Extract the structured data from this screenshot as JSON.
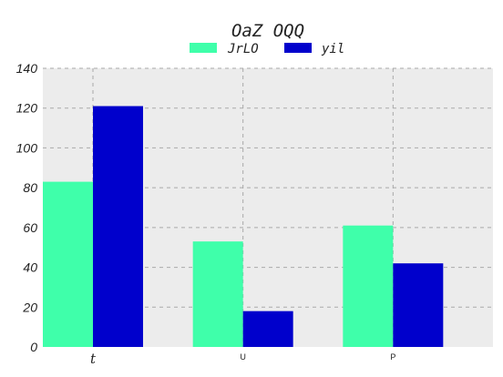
{
  "chart_data": {
    "type": "bar",
    "title": "OaZ OQQ",
    "xlabel": "",
    "ylabel": "",
    "categories": [
      "t",
      "U",
      "P"
    ],
    "series": [
      {
        "name": "JrLO",
        "color": "#3fffaa",
        "values": [
          83,
          53,
          61
        ]
      },
      {
        "name": "yil",
        "color": "#0000cc",
        "values": [
          121,
          18,
          42
        ]
      }
    ],
    "ylim": [
      0,
      140
    ],
    "yticks": [
      "0",
      "20",
      "40",
      "60",
      "80",
      "100",
      "120",
      "140"
    ],
    "grid": true,
    "legend_position": "top-center",
    "plot_background": "#ececec",
    "grid_color": "#a9a9a9"
  }
}
